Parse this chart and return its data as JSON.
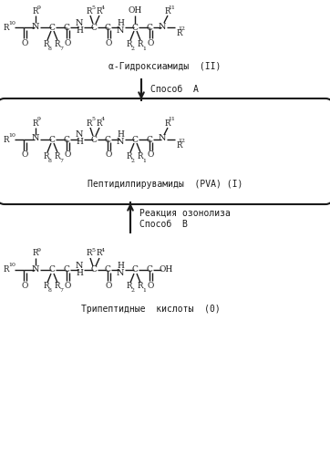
{
  "bg_color": "#ffffff",
  "line_color": "#1a1a1a",
  "text_color": "#1a1a1a",
  "fig_width": 3.62,
  "fig_height": 4.99,
  "dpi": 100,
  "label1": "α-Гидроксиамиды  (II)",
  "label2": "Пептидилпирувамиды  (PVA) (I)",
  "label3": "Трипептидные  кислоты  (0)",
  "arrow1_label": "Способ  A",
  "arrow2_label1": "Реакция озонолиза",
  "arrow2_label2": "Способ  B"
}
